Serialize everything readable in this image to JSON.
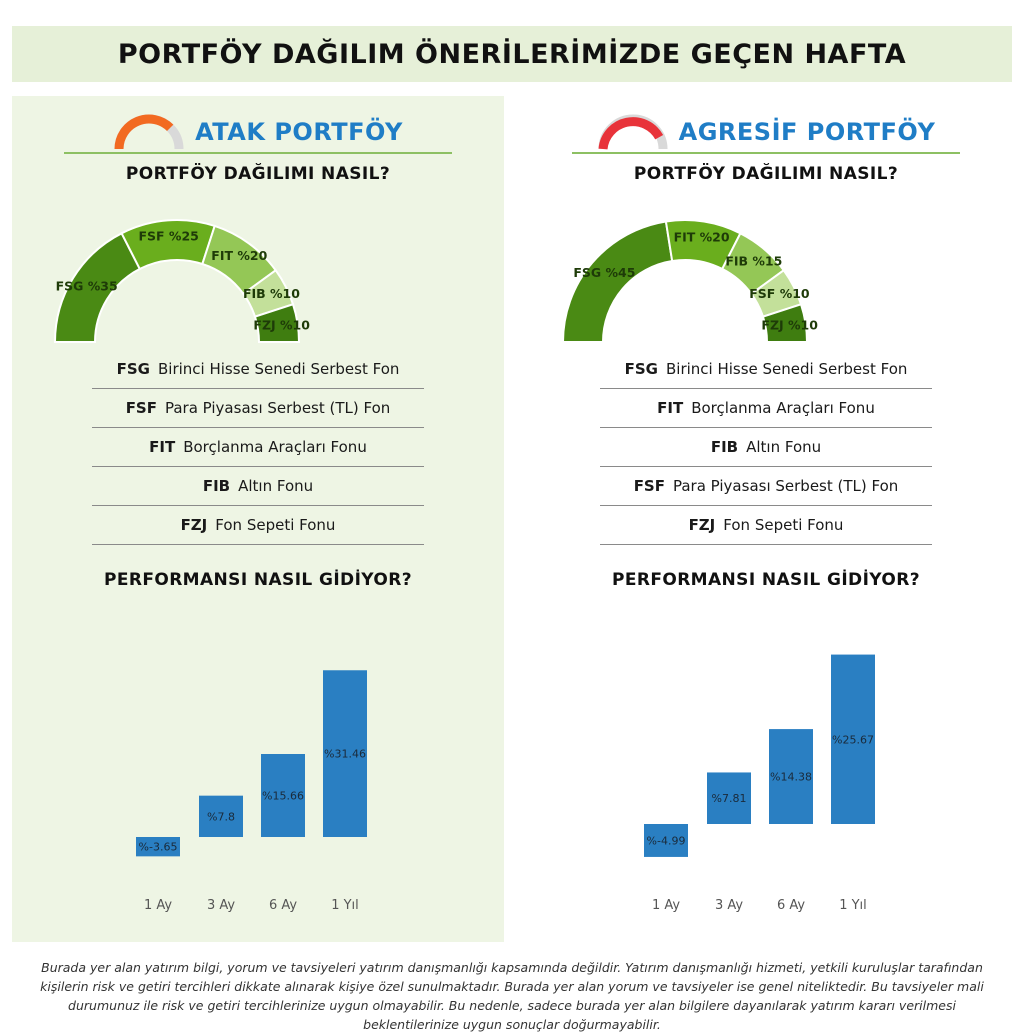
{
  "header": {
    "title": "PORTFÖY DAĞILIM ÖNERİLERİMİZDE GEÇEN HAFTA"
  },
  "panels": [
    {
      "brand_title": "ATAK PORTFÖY",
      "meter_color": "#f26a21",
      "distribution_title": "PORTFÖY DAĞILIMI NASIL?",
      "performance_title": "PERFORMANSI NASIL GİDİYOR?",
      "legend": [
        {
          "code": "FSG",
          "name": "Birinci Hisse Senedi Serbest Fon"
        },
        {
          "code": "FSF",
          "name": "Para Piyasası Serbest (TL) Fon"
        },
        {
          "code": "FIT",
          "name": "Borçlanma Araçları Fonu"
        },
        {
          "code": "FIB",
          "name": "Altın Fonu"
        },
        {
          "code": "FZJ",
          "name": "Fon Sepeti Fonu"
        }
      ]
    },
    {
      "brand_title": "AGRESİF PORTFÖY",
      "meter_color": "#e8333a",
      "distribution_title": "PORTFÖY DAĞILIMI NASIL?",
      "performance_title": "PERFORMANSI NASIL GİDİYOR?",
      "legend": [
        {
          "code": "FSG",
          "name": "Birinci Hisse Senedi Serbest Fon"
        },
        {
          "code": "FIT",
          "name": "Borçlanma Araçları Fonu"
        },
        {
          "code": "FIB",
          "name": "Altın Fonu"
        },
        {
          "code": "FSF",
          "name": "Para Piyasası Serbest (TL) Fon"
        },
        {
          "code": "FZJ",
          "name": "Fon Sepeti Fonu"
        }
      ]
    }
  ],
  "chart_data": [
    {
      "type": "pie",
      "subtype": "half-donut",
      "title": "PORTFÖY DAĞILIMI NASIL?",
      "slices": [
        {
          "label": "FSG %35",
          "value": 35,
          "color": "#4a8a14"
        },
        {
          "label": "FSF %25",
          "value": 25,
          "color": "#6aae1d"
        },
        {
          "label": "FIT %20",
          "value": 20,
          "color": "#94c756"
        },
        {
          "label": "FIB %10",
          "value": 10,
          "color": "#c3e09a"
        },
        {
          "label": "FZJ %10",
          "value": 10,
          "color": "#3f7d10"
        }
      ]
    },
    {
      "type": "bar",
      "title": "PERFORMANSI NASIL GİDİYOR?",
      "categories": [
        "1 Ay",
        "3 Ay",
        "6 Ay",
        "1 Yıl"
      ],
      "values": [
        -3.65,
        7.8,
        15.66,
        31.46
      ],
      "labels": [
        "%-3.65",
        "%7.8",
        "%15.66",
        "%31.46"
      ],
      "color": "#2a7fc2",
      "grid": false
    },
    {
      "type": "pie",
      "subtype": "half-donut",
      "title": "PORTFÖY DAĞILIMI NASIL?",
      "slices": [
        {
          "label": "FSG %45",
          "value": 45,
          "color": "#4a8a14"
        },
        {
          "label": "FIT %20",
          "value": 20,
          "color": "#6aae1d"
        },
        {
          "label": "FIB %15",
          "value": 15,
          "color": "#94c756"
        },
        {
          "label": "FSF %10",
          "value": 10,
          "color": "#c3e09a"
        },
        {
          "label": "FZJ %10",
          "value": 10,
          "color": "#3f7d10"
        }
      ]
    },
    {
      "type": "bar",
      "title": "PERFORMANSI NASIL GİDİYOR?",
      "categories": [
        "1 Ay",
        "3 Ay",
        "6 Ay",
        "1 Yıl"
      ],
      "values": [
        -4.99,
        7.81,
        14.38,
        25.67
      ],
      "labels": [
        "%-4.99",
        "%7.81",
        "%14.38",
        "%25.67"
      ],
      "color": "#2a7fc2",
      "grid": false
    }
  ],
  "disclaimer": "Burada yer alan yatırım bilgi, yorum ve tavsiyeleri yatırım danışmanlığı kapsamında değildir. Yatırım danışmanlığı hizmeti, yetkili kuruluşlar tarafından kişilerin risk ve getiri tercihleri dikkate alınarak kişiye özel sunulmaktadır. Burada yer alan yorum ve tavsiyeler ise genel niteliktedir. Bu tavsiyeler mali durumunuz ile risk ve getiri tercihlerinize uygun olmayabilir. Bu nedenle, sadece burada yer alan bilgilere dayanılarak yatırım kararı verilmesi beklentilerinize uygun sonuçlar doğurmayabilir."
}
